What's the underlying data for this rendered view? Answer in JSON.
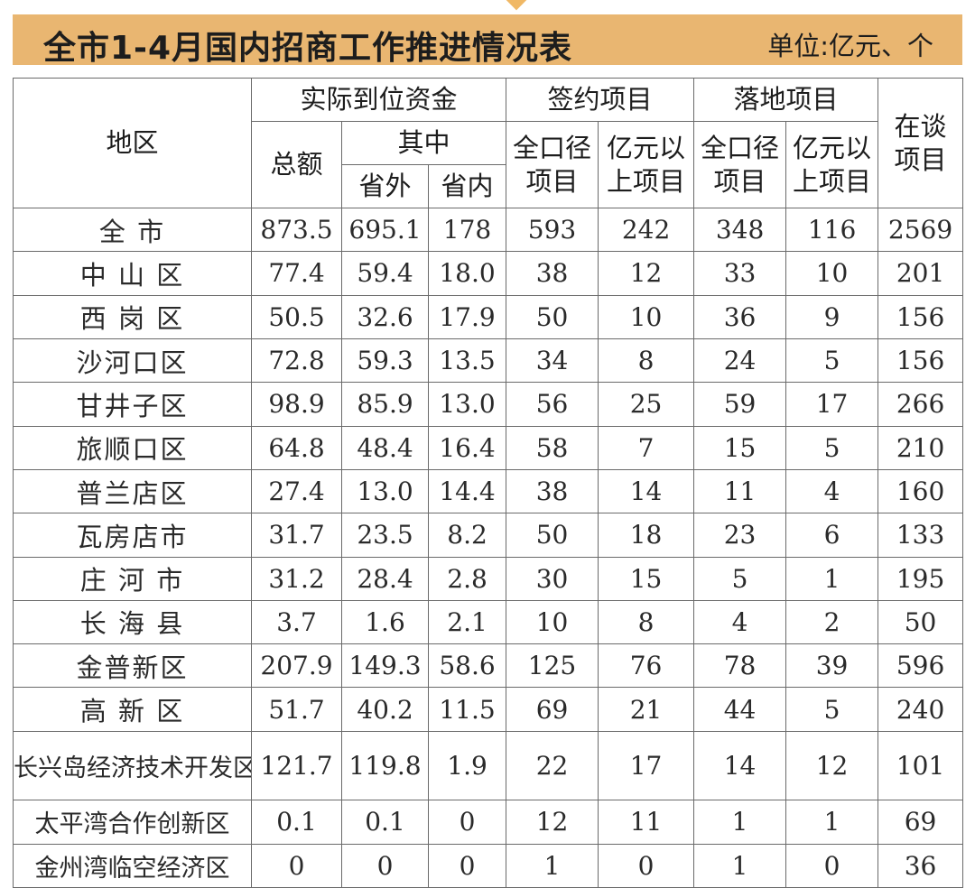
{
  "title": "全市1-4月国内招商工作推进情况表",
  "unit": "单位:亿元、个",
  "headers": {
    "region": "地区",
    "actual_funds": "实际到位资金",
    "total": "总额",
    "of_which": "其中",
    "outside_province": "省外",
    "inside_province": "省内",
    "signed_projects": "签约项目",
    "landed_projects": "落地项目",
    "all_scope_1": "全口径",
    "all_scope_2": "项目",
    "over_100m_1": "亿元以",
    "over_100m_2": "上项目",
    "negotiating_1": "在谈",
    "negotiating_2": "项目"
  },
  "rows": [
    {
      "region": "全 市",
      "total": "873.5",
      "outside": "695.1",
      "inside": "178",
      "signed_all": "593",
      "signed_big": "242",
      "landed_all": "348",
      "landed_big": "116",
      "negotiating": "2569"
    },
    {
      "region": "中 山 区",
      "total": "77.4",
      "outside": "59.4",
      "inside": "18.0",
      "signed_all": "38",
      "signed_big": "12",
      "landed_all": "33",
      "landed_big": "10",
      "negotiating": "201"
    },
    {
      "region": "西 岗 区",
      "total": "50.5",
      "outside": "32.6",
      "inside": "17.9",
      "signed_all": "50",
      "signed_big": "10",
      "landed_all": "36",
      "landed_big": "9",
      "negotiating": "156"
    },
    {
      "region": "沙河口区",
      "total": "72.8",
      "outside": "59.3",
      "inside": "13.5",
      "signed_all": "34",
      "signed_big": "8",
      "landed_all": "24",
      "landed_big": "5",
      "negotiating": "156"
    },
    {
      "region": "甘井子区",
      "total": "98.9",
      "outside": "85.9",
      "inside": "13.0",
      "signed_all": "56",
      "signed_big": "25",
      "landed_all": "59",
      "landed_big": "17",
      "negotiating": "266"
    },
    {
      "region": "旅顺口区",
      "total": "64.8",
      "outside": "48.4",
      "inside": "16.4",
      "signed_all": "58",
      "signed_big": "7",
      "landed_all": "15",
      "landed_big": "5",
      "negotiating": "210"
    },
    {
      "region": "普兰店区",
      "total": "27.4",
      "outside": "13.0",
      "inside": "14.4",
      "signed_all": "38",
      "signed_big": "14",
      "landed_all": "11",
      "landed_big": "4",
      "negotiating": "160"
    },
    {
      "region": "瓦房店市",
      "total": "31.7",
      "outside": "23.5",
      "inside": "8.2",
      "signed_all": "50",
      "signed_big": "18",
      "landed_all": "23",
      "landed_big": "6",
      "negotiating": "133"
    },
    {
      "region": "庄 河 市",
      "total": "31.2",
      "outside": "28.4",
      "inside": "2.8",
      "signed_all": "30",
      "signed_big": "15",
      "landed_all": "5",
      "landed_big": "1",
      "negotiating": "195"
    },
    {
      "region": "长 海 县",
      "total": "3.7",
      "outside": "1.6",
      "inside": "2.1",
      "signed_all": "10",
      "signed_big": "8",
      "landed_all": "4",
      "landed_big": "2",
      "negotiating": "50"
    },
    {
      "region": "金普新区",
      "total": "207.9",
      "outside": "149.3",
      "inside": "58.6",
      "signed_all": "125",
      "signed_big": "76",
      "landed_all": "78",
      "landed_big": "39",
      "negotiating": "596"
    },
    {
      "region": "高 新 区",
      "total": "51.7",
      "outside": "40.2",
      "inside": "11.5",
      "signed_all": "69",
      "signed_big": "21",
      "landed_all": "44",
      "landed_big": "5",
      "negotiating": "240"
    },
    {
      "region": "长兴岛经济技术开发区",
      "total": "121.7",
      "outside": "119.8",
      "inside": "1.9",
      "signed_all": "22",
      "signed_big": "17",
      "landed_all": "14",
      "landed_big": "12",
      "negotiating": "101"
    },
    {
      "region": "太平湾合作创新区",
      "total": "0.1",
      "outside": "0.1",
      "inside": "0",
      "signed_all": "12",
      "signed_big": "11",
      "landed_all": "1",
      "landed_big": "1",
      "negotiating": "69"
    },
    {
      "region": "金州湾临空经济区",
      "total": "0",
      "outside": "0",
      "inside": "0",
      "signed_all": "1",
      "signed_big": "0",
      "landed_all": "1",
      "landed_big": "0",
      "negotiating": "36"
    }
  ]
}
